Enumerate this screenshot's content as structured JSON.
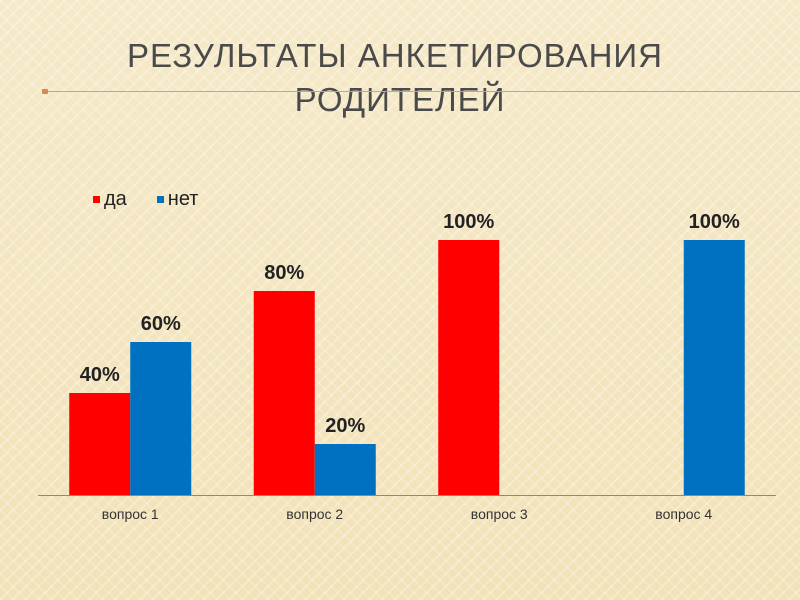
{
  "slide": {
    "title_line1": "РЕЗУЛЬТАТЫ АНКЕТИРОВАНИЯ",
    "title_line2": "РОДИТЕЛЕЙ"
  },
  "chart_data": {
    "type": "bar",
    "categories": [
      "вопрос 1",
      "вопрос 2",
      "вопрос 3",
      "вопрос 4"
    ],
    "series": [
      {
        "name": "да",
        "color": "#ff0000",
        "values": [
          40,
          80,
          100,
          0
        ]
      },
      {
        "name": "нет",
        "color": "#0070c0",
        "values": [
          60,
          20,
          0,
          100
        ]
      }
    ],
    "data_labels": [
      [
        "40%",
        "80%",
        "100%",
        ""
      ],
      [
        "60%",
        "20%",
        "",
        "100%"
      ]
    ],
    "ylim": [
      0,
      100
    ],
    "grid": false,
    "legend_position": "top-left",
    "title": "",
    "xlabel": "",
    "ylabel": ""
  }
}
